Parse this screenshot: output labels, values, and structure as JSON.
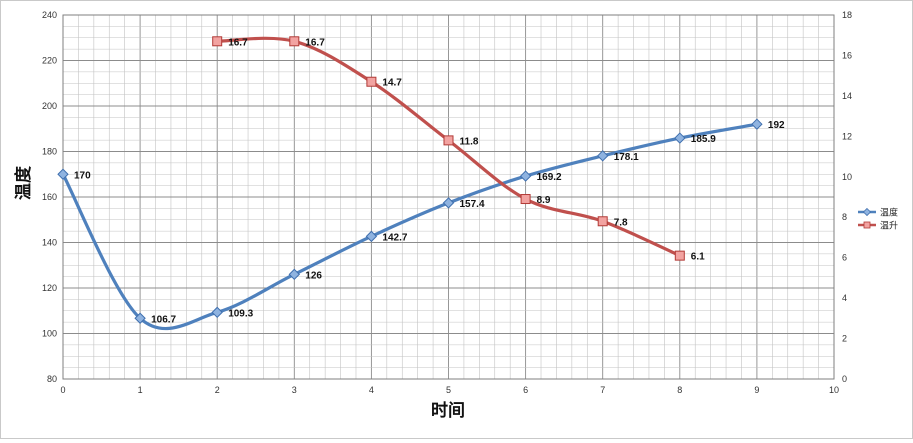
{
  "chart_data": {
    "type": "line",
    "xlabel": "时间",
    "ylabel": "温度",
    "xlim": [
      0,
      10
    ],
    "ylim": [
      80,
      240
    ],
    "y2lim": [
      0,
      18
    ],
    "x_ticks": [
      0,
      1,
      2,
      3,
      4,
      5,
      6,
      7,
      8,
      9,
      10
    ],
    "y_ticks": [
      80,
      100,
      120,
      140,
      160,
      180,
      200,
      220,
      240
    ],
    "y2_ticks": [
      0,
      2,
      4,
      6,
      8,
      10,
      12,
      14,
      16,
      18
    ],
    "grid": true,
    "legend_position": "right",
    "series": [
      {
        "name": "温度",
        "axis": "left",
        "color": "#4f81bd",
        "marker": "diamond",
        "x": [
          0,
          1,
          2,
          3,
          4,
          5,
          6,
          7,
          8,
          9
        ],
        "values": [
          170,
          106.7,
          109.3,
          126,
          142.7,
          157.4,
          169.2,
          178.1,
          185.9,
          192
        ],
        "labels": [
          "170",
          "106.7",
          "109.3",
          "126",
          "142.7",
          "157.4",
          "169.2",
          "178.1",
          "185.9",
          "192"
        ]
      },
      {
        "name": "温升",
        "axis": "right",
        "color": "#c0504d",
        "marker": "square",
        "x": [
          2,
          3,
          4,
          5,
          6,
          7,
          8
        ],
        "values": [
          16.7,
          16.7,
          14.7,
          11.8,
          8.9,
          7.8,
          6.1
        ],
        "labels": [
          "16.7",
          "16.7",
          "14.7",
          "11.8",
          "8.9",
          "7.8",
          "6.1"
        ]
      }
    ]
  }
}
